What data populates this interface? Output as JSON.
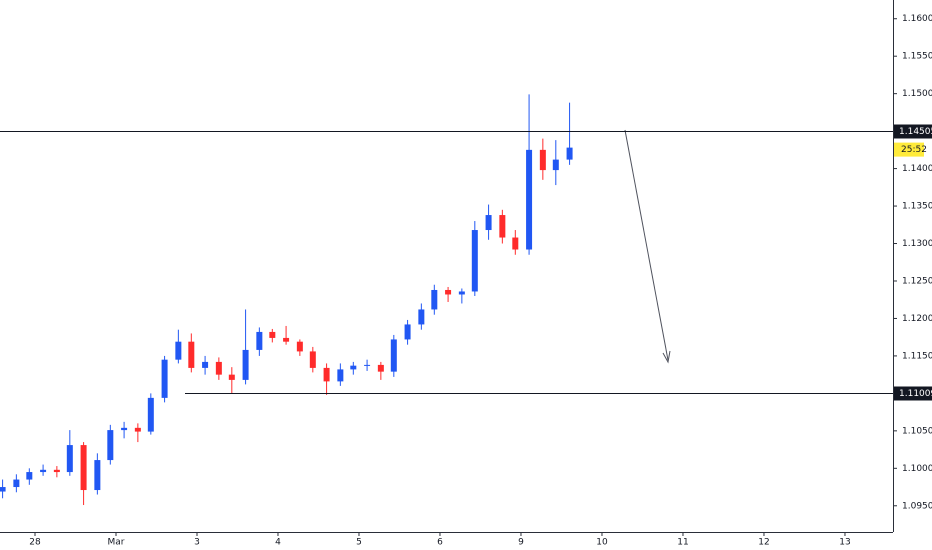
{
  "chart_data": {
    "type": "candlestick",
    "up_color": "#2157f3",
    "down_color": "#ff2b2b",
    "x": [
      -0.4,
      -0.23,
      -0.07,
      0.1,
      0.27,
      0.43,
      0.6,
      0.77,
      0.93,
      1.1,
      1.27,
      1.43,
      1.6,
      1.77,
      1.93,
      2.1,
      2.27,
      2.43,
      2.6,
      2.77,
      2.93,
      3.1,
      3.27,
      3.43,
      3.6,
      3.77,
      3.93,
      4.1,
      4.27,
      4.43,
      4.6,
      4.77,
      4.93,
      5.1,
      5.27,
      5.43,
      5.6,
      5.77,
      5.93,
      6.1,
      6.27,
      6.43,
      6.6
    ],
    "open": [
      1.0969,
      1.0975,
      1.0985,
      1.0995,
      1.0998,
      1.0995,
      1.1031,
      1.0971,
      1.1011,
      1.1051,
      1.1054,
      1.1049,
      1.1094,
      1.1145,
      1.1169,
      1.1134,
      1.1142,
      1.1125,
      1.1118,
      1.1158,
      1.1182,
      1.1174,
      1.1169,
      1.1156,
      1.1134,
      1.1116,
      1.1132,
      1.1137,
      1.1138,
      1.1129,
      1.1172,
      1.1192,
      1.1212,
      1.1238,
      1.1232,
      1.1236,
      1.1318,
      1.1338,
      1.1308,
      1.1292,
      1.1425,
      1.1398,
      1.1412
    ],
    "high": [
      1.0985,
      1.0992,
      1.1,
      1.1005,
      1.1003,
      1.1051,
      1.1035,
      1.102,
      1.1058,
      1.1062,
      1.106,
      1.11,
      1.115,
      1.1185,
      1.118,
      1.115,
      1.1148,
      1.1135,
      1.1212,
      1.1188,
      1.1186,
      1.119,
      1.1172,
      1.1162,
      1.114,
      1.114,
      1.1142,
      1.1145,
      1.1142,
      1.1178,
      1.1198,
      1.122,
      1.1245,
      1.1242,
      1.124,
      1.133,
      1.1352,
      1.1345,
      1.1318,
      1.1499,
      1.144,
      1.1438,
      1.1488
    ],
    "low": [
      1.096,
      1.0968,
      1.0978,
      1.099,
      1.0988,
      1.099,
      1.0951,
      1.0965,
      1.1005,
      1.104,
      1.1035,
      1.1045,
      1.1088,
      1.114,
      1.1128,
      1.1125,
      1.1118,
      1.11,
      1.1112,
      1.115,
      1.1168,
      1.1165,
      1.115,
      1.1128,
      1.1098,
      1.111,
      1.1125,
      1.113,
      1.1118,
      1.1122,
      1.1165,
      1.1185,
      1.1205,
      1.1222,
      1.122,
      1.123,
      1.1305,
      1.13,
      1.1285,
      1.1285,
      1.1385,
      1.1378,
      1.1405
    ],
    "close": [
      1.0975,
      1.0985,
      1.0995,
      1.0998,
      1.0995,
      1.1031,
      1.0971,
      1.1011,
      1.1051,
      1.1054,
      1.1049,
      1.1094,
      1.1145,
      1.1169,
      1.1134,
      1.1142,
      1.1125,
      1.1118,
      1.1158,
      1.1182,
      1.1174,
      1.1169,
      1.1156,
      1.1134,
      1.1116,
      1.1132,
      1.1137,
      1.1138,
      1.1129,
      1.1172,
      1.1192,
      1.1212,
      1.1238,
      1.1232,
      1.1236,
      1.1318,
      1.1338,
      1.1308,
      1.1292,
      1.1425,
      1.1398,
      1.1412,
      1.1428
    ],
    "xlim": [
      -0.432,
      10.593
    ],
    "ylim": [
      1.0915,
      1.1625
    ],
    "xticks": [
      {
        "value": 0,
        "label": "28"
      },
      {
        "value": 1,
        "label": "Mar"
      },
      {
        "value": 2,
        "label": "3"
      },
      {
        "value": 3,
        "label": "4"
      },
      {
        "value": 4,
        "label": "5"
      },
      {
        "value": 5,
        "label": "6"
      },
      {
        "value": 6,
        "label": "9"
      },
      {
        "value": 7,
        "label": "10"
      },
      {
        "value": 8,
        "label": "11"
      },
      {
        "value": 9,
        "label": "12"
      },
      {
        "value": 10,
        "label": "13"
      }
    ],
    "yticks": [
      {
        "value": 1.095,
        "label": "1.09500"
      },
      {
        "value": 1.1,
        "label": "1.10000"
      },
      {
        "value": 1.105,
        "label": "1.10500"
      },
      {
        "value": 1.11,
        "label": "1.11000"
      },
      {
        "value": 1.115,
        "label": "1.11500"
      },
      {
        "value": 1.12,
        "label": "1.12000"
      },
      {
        "value": 1.125,
        "label": "1.12500"
      },
      {
        "value": 1.13,
        "label": "1.13000"
      },
      {
        "value": 1.135,
        "label": "1.13500"
      },
      {
        "value": 1.14,
        "label": "1.14000"
      },
      {
        "value": 1.145,
        "label": "1.14500"
      },
      {
        "value": 1.15,
        "label": "1.15000"
      },
      {
        "value": 1.155,
        "label": "1.15500"
      },
      {
        "value": 1.16,
        "label": "1.16000"
      }
    ],
    "levels": [
      1.14505,
      1.11009
    ],
    "countdown": "25:52"
  }
}
